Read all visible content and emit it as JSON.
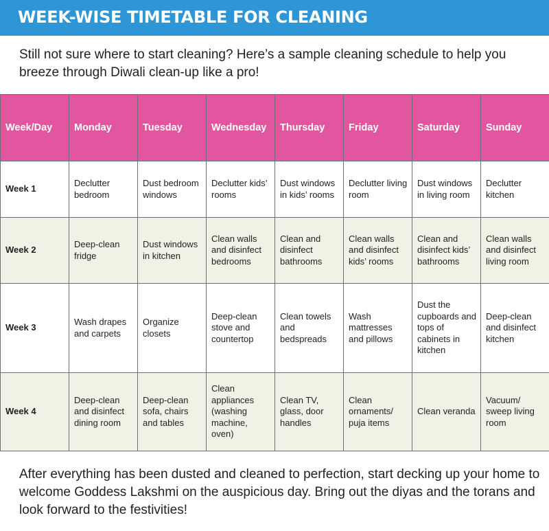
{
  "title": "WEEK-WISE TIMETABLE FOR CLEANING",
  "intro": "Still not sure where to start cleaning? Here’s a sample cleaning schedule to help you breeze through Diwali clean-up like a pro!",
  "table": {
    "headers": [
      "Week/Day",
      "Monday",
      "Tuesday",
      "Wednesday",
      "Thursday",
      "Friday",
      "Saturday",
      "Sunday"
    ],
    "rows": [
      {
        "week": "Week 1",
        "cells": [
          "Declutter bedroom",
          "Dust bedroom windows",
          "Declutter kids’ rooms",
          "Dust windows in kids’ rooms",
          "Declutter living room",
          "Dust windows in living room",
          "Declutter kitchen"
        ]
      },
      {
        "week": "Week 2",
        "cells": [
          "Deep-clean fridge",
          "Dust windows in kitchen",
          "Clean walls and disinfect bedrooms",
          "Clean and disinfect bathrooms",
          "Clean walls and disinfect kids’ rooms",
          "Clean and disinfect kids’ bathrooms",
          "Clean walls and disinfect living room"
        ]
      },
      {
        "week": "Week 3",
        "cells": [
          "Wash drapes and carpets",
          "Organize closets",
          "Deep-clean stove and countertop",
          "Clean towels and bedspreads",
          "Wash mattresses and pillows",
          "Dust the cupboards and tops of cabinets in kitchen",
          "Deep-clean and disinfect kitchen"
        ]
      },
      {
        "week": "Week 4",
        "cells": [
          "Deep-clean and disinfect dining room",
          "Deep-clean sofa, chairs and tables",
          "Clean appliances (washing machine, oven)",
          "Clean TV, glass, door handles",
          "Clean ornaments/ puja items",
          "Clean veranda",
          "Vacuum/ sweep living room"
        ]
      }
    ]
  },
  "outro": "After everything has been dusted and cleaned to perfection, start decking up your home to welcome Goddess Lakshmi on the auspicious day. Bring out the diyas and the torans and look forward to the festivities!",
  "colors": {
    "title_bar": "#2e96d4",
    "header_row": "#e1569f",
    "alt_row": "#eef3e5"
  }
}
